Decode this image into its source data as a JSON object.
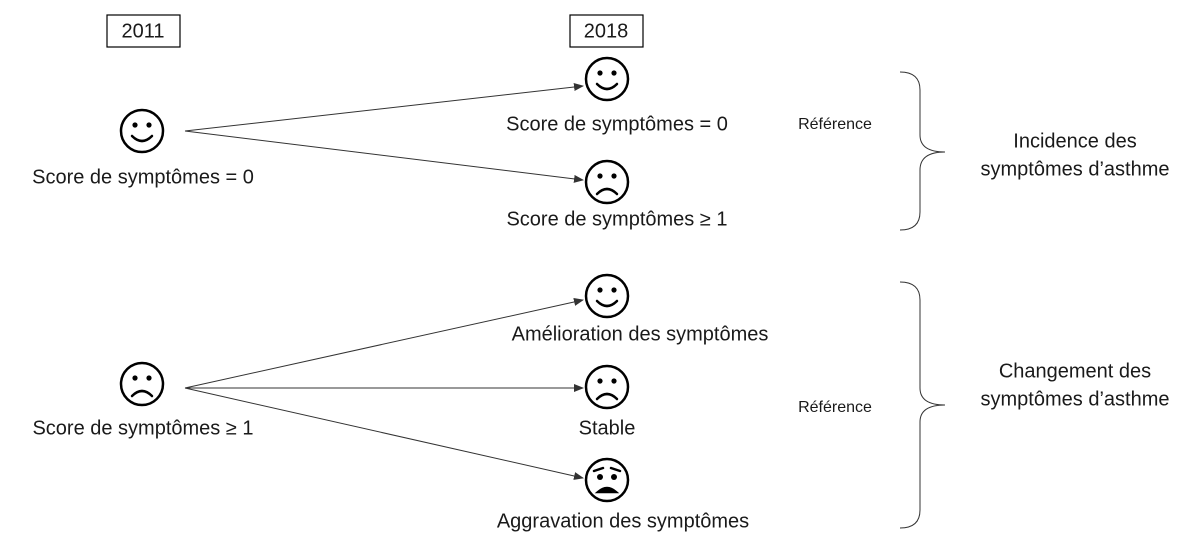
{
  "years": [
    "2011",
    "2018"
  ],
  "groups": [
    {
      "source_label": "Score de symptômes = 0",
      "outcomes": [
        {
          "label": "Score de symptômes = 0"
        },
        {
          "label": "Score de symptômes ≥ 1"
        }
      ],
      "reference": "Référence",
      "category": [
        "Incidence des",
        "symptômes d’asthme"
      ]
    },
    {
      "source_label": "Score de symptômes ≥ 1",
      "outcomes": [
        {
          "label": "Amélioration des symptômes"
        },
        {
          "label": "Stable"
        },
        {
          "label": "Aggravation des symptômes"
        }
      ],
      "reference": "Référence",
      "category": [
        "Changement des",
        "symptômes d’asthme"
      ]
    }
  ]
}
